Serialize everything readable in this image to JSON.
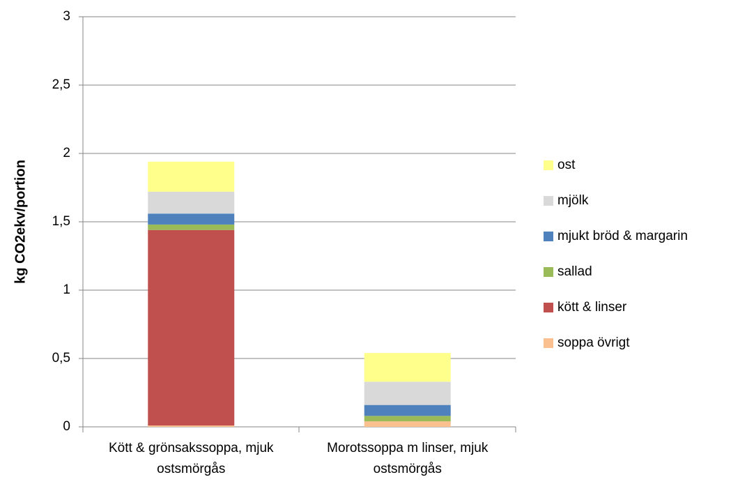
{
  "chart_data": {
    "type": "stacked_bar",
    "y_label": "kg CO2ekv/portion",
    "categories": [
      "Kött & grönsakssoppa, mjuk ostsmörgås",
      "Morotssoppa m linser, mjuk ostsmörgås"
    ],
    "series": [
      {
        "name": "soppa övrigt",
        "color": "#fac090",
        "values": [
          0.01,
          0.04
        ]
      },
      {
        "name": "kött & linser",
        "color": "#c0504d",
        "values": [
          1.43,
          0
        ]
      },
      {
        "name": "sallad",
        "color": "#9bbb59",
        "values": [
          0.04,
          0.04
        ]
      },
      {
        "name": "mjukt bröd & margarin",
        "color": "#4f81bd",
        "values": [
          0.08,
          0.08
        ]
      },
      {
        "name": "mjölk",
        "color": "#d9d9d9",
        "values": [
          0.16,
          0.17
        ]
      },
      {
        "name": "ost",
        "color": "#ffff8c",
        "values": [
          0.22,
          0.21
        ]
      }
    ],
    "ylim": [
      0,
      3
    ],
    "yticks": [
      0,
      {
        "value": 0.5,
        "label": "0,5"
      },
      1,
      {
        "value": 1.5,
        "label": "1,5"
      },
      2,
      {
        "value": 2.5,
        "label": "2,5"
      },
      3
    ],
    "grid": true,
    "legend": "right"
  }
}
